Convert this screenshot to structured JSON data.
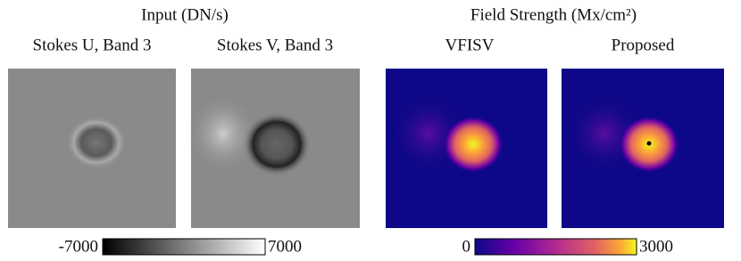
{
  "input_group": {
    "title": "Input (DN/s)",
    "panels": [
      {
        "label": "Stokes U, Band 3"
      },
      {
        "label": "Stokes V, Band 3"
      }
    ],
    "colorbar": {
      "min": -7000,
      "max": 7000
    }
  },
  "output_group": {
    "title": "Field Strength (Mx/cm²)",
    "panels": [
      {
        "label": "VFISV"
      },
      {
        "label": "Proposed"
      }
    ],
    "colorbar": {
      "min": 0,
      "max": 3000
    }
  }
}
